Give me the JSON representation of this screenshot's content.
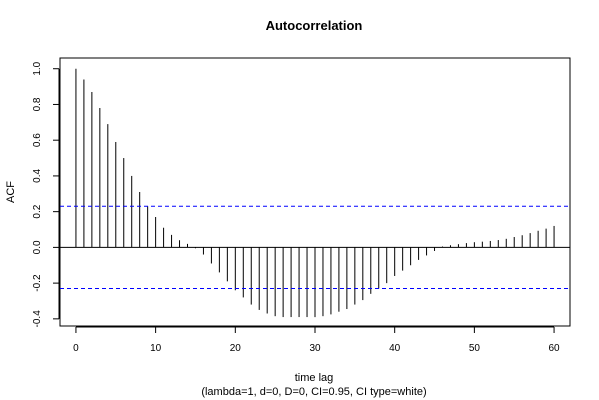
{
  "chart_data": {
    "type": "bar",
    "title": "Autocorrelation",
    "xlabel": "time lag",
    "xlabel2": "(lambda=1, d=0, D=0, CI=0.95, CI type=white)",
    "ylabel": "ACF",
    "xlim": [
      -2,
      62
    ],
    "ylim": [
      -0.44,
      1.06
    ],
    "x_ticks": [
      "0",
      "10",
      "20",
      "30",
      "40",
      "50",
      "60"
    ],
    "y_ticks": [
      "-0.4",
      "-0.2",
      "0.0",
      "0.2",
      "0.4",
      "0.6",
      "0.8",
      "1.0"
    ],
    "ci_upper": 0.23,
    "ci_lower": -0.23,
    "ci_color": "#0000ff",
    "bar_color": "#000000",
    "lags": [
      0,
      1,
      2,
      3,
      4,
      5,
      6,
      7,
      8,
      9,
      10,
      11,
      12,
      13,
      14,
      15,
      16,
      17,
      18,
      19,
      20,
      21,
      22,
      23,
      24,
      25,
      26,
      27,
      28,
      29,
      30,
      31,
      32,
      33,
      34,
      35,
      36,
      37,
      38,
      39,
      40,
      41,
      42,
      43,
      44,
      45,
      46,
      47,
      48,
      49,
      50,
      51,
      52,
      53,
      54,
      55,
      56,
      57,
      58,
      59,
      60
    ],
    "values": [
      1.0,
      0.94,
      0.87,
      0.78,
      0.69,
      0.59,
      0.5,
      0.4,
      0.31,
      0.23,
      0.17,
      0.11,
      0.07,
      0.04,
      0.02,
      -0.005,
      -0.04,
      -0.09,
      -0.14,
      -0.19,
      -0.24,
      -0.28,
      -0.32,
      -0.35,
      -0.37,
      -0.385,
      -0.39,
      -0.39,
      -0.39,
      -0.39,
      -0.39,
      -0.385,
      -0.375,
      -0.36,
      -0.345,
      -0.32,
      -0.295,
      -0.26,
      -0.23,
      -0.2,
      -0.16,
      -0.13,
      -0.1,
      -0.07,
      -0.045,
      -0.02,
      0.005,
      0.012,
      0.018,
      0.024,
      0.029,
      0.032,
      0.036,
      0.041,
      0.048,
      0.058,
      0.068,
      0.08,
      0.093,
      0.105,
      0.12
    ]
  }
}
